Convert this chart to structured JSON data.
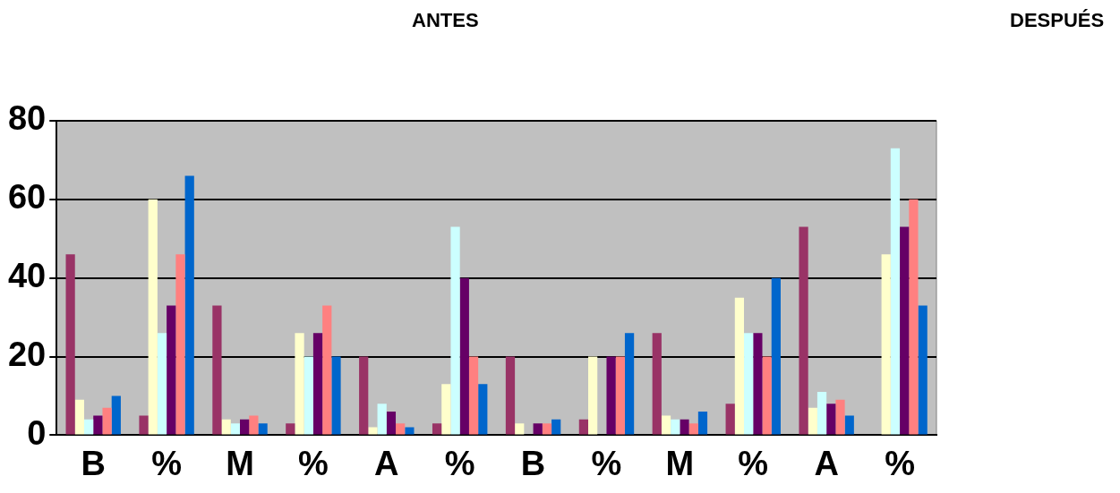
{
  "chart_data": {
    "type": "bar",
    "annotations": [
      "ANTES",
      "DESPUÉS"
    ],
    "categories": [
      "B",
      "%",
      "M",
      "%",
      "A",
      "%",
      "B",
      "%",
      "M",
      "%",
      "A",
      "%"
    ],
    "series": [
      {
        "color": "#993366",
        "values": [
          46,
          5,
          33,
          3,
          20,
          3,
          20,
          4,
          26,
          8,
          53,
          0
        ]
      },
      {
        "color": "#ffffcc",
        "values": [
          9,
          60,
          4,
          26,
          2,
          13,
          3,
          20,
          5,
          35,
          7,
          46
        ]
      },
      {
        "color": "#ccffff",
        "values": [
          4,
          26,
          3,
          20,
          8,
          53,
          0,
          0,
          4,
          26,
          11,
          73
        ]
      },
      {
        "color": "#660066",
        "values": [
          5,
          33,
          4,
          26,
          6,
          40,
          3,
          20,
          4,
          26,
          8,
          53
        ]
      },
      {
        "color": "#ff8080",
        "values": [
          7,
          46,
          5,
          33,
          3,
          20,
          3,
          20,
          3,
          20,
          9,
          60
        ]
      },
      {
        "color": "#0066cc",
        "values": [
          10,
          66,
          3,
          20,
          2,
          13,
          4,
          26,
          6,
          40,
          5,
          33
        ]
      }
    ],
    "ylim": [
      0,
      80
    ],
    "yticks": [
      0,
      20,
      40,
      60,
      80
    ],
    "grid": "y",
    "legend": false
  }
}
